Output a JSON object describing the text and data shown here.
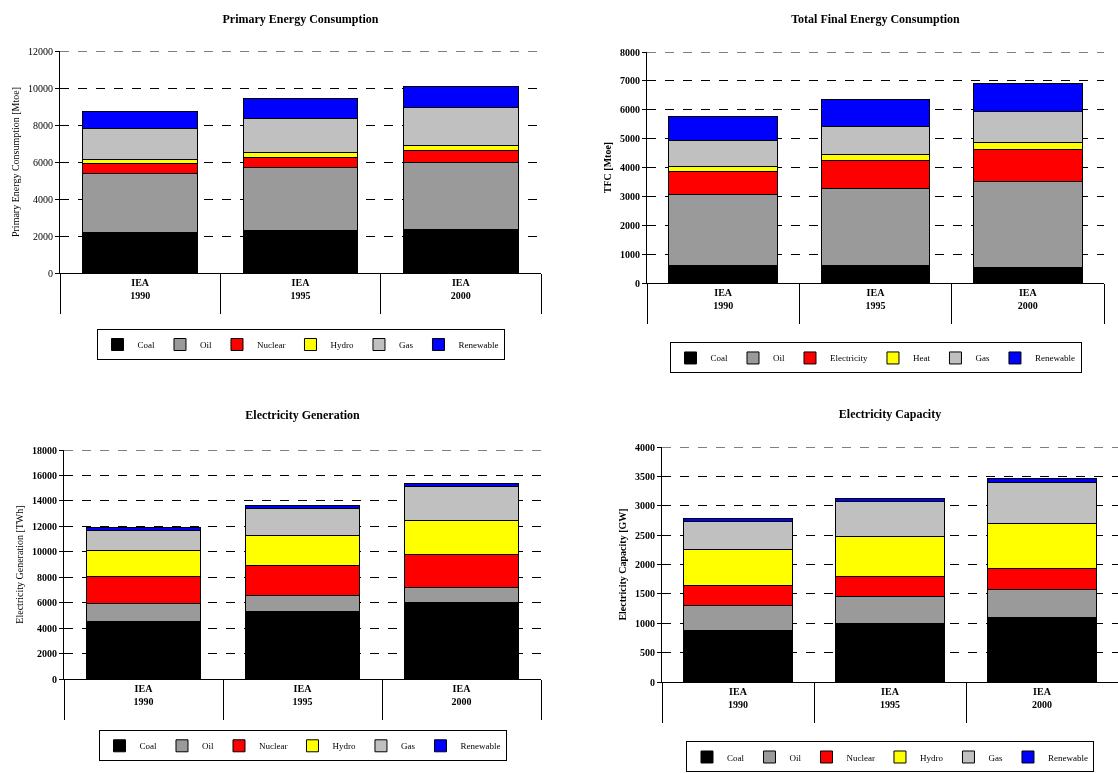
{
  "chart_data": [
    {
      "type": "bar",
      "title": "Primary Energy Consumption",
      "ylabel": "Primary Energy Consumption [Mtoe]",
      "categories": [
        "IEA\n1990",
        "IEA\n1995",
        "IEA\n2000"
      ],
      "stacked": true,
      "ylim": [
        0,
        12000
      ],
      "yticks": [
        0,
        2000,
        4000,
        6000,
        8000,
        10000,
        12000
      ],
      "grid": "y",
      "legend": "bottom",
      "series": [
        {
          "name": "Coal",
          "color": "#000000",
          "values": [
            2200,
            2280,
            2350
          ]
        },
        {
          "name": "Oil",
          "color": "#9a9a9a",
          "values": [
            3200,
            3410,
            3610
          ]
        },
        {
          "name": "Nuclear",
          "color": "#ff0000",
          "values": [
            500,
            580,
            660
          ]
        },
        {
          "name": "Hydro",
          "color": "#ffff00",
          "values": [
            240,
            230,
            250
          ]
        },
        {
          "name": "Gas",
          "color": "#c0c0c0",
          "values": [
            1650,
            1850,
            2080
          ]
        },
        {
          "name": "Renewable",
          "color": "#0000ff",
          "values": [
            950,
            1060,
            1140
          ]
        }
      ]
    },
    {
      "type": "bar",
      "title": "Total Final Energy Consumption",
      "ylabel": "TFC [Mtoe]",
      "categories": [
        "IEA\n1990",
        "IEA\n1995",
        "IEA\n2000"
      ],
      "stacked": true,
      "ylim": [
        0,
        8000
      ],
      "yticks": [
        0,
        1000,
        2000,
        3000,
        4000,
        5000,
        6000,
        7000,
        8000
      ],
      "grid": "y",
      "legend": "bottom",
      "series": [
        {
          "name": "Coal",
          "color": "#000000",
          "values": [
            620,
            590,
            550
          ]
        },
        {
          "name": "Oil",
          "color": "#9a9a9a",
          "values": [
            2460,
            2700,
            2970
          ]
        },
        {
          "name": "Electricity",
          "color": "#ff0000",
          "values": [
            770,
            950,
            1090
          ]
        },
        {
          "name": "Heat",
          "color": "#ffff00",
          "values": [
            180,
            220,
            250
          ]
        },
        {
          "name": "Gas",
          "color": "#c0c0c0",
          "values": [
            920,
            970,
            1070
          ]
        },
        {
          "name": "Renewable",
          "color": "#0000ff",
          "values": [
            830,
            910,
            990
          ]
        }
      ]
    },
    {
      "type": "bar",
      "title": "Electricity Generation",
      "ylabel": "Electricity Generation [TWh]",
      "categories": [
        "IEA\n1990",
        "IEA\n1995",
        "IEA\n2000"
      ],
      "stacked": true,
      "ylim": [
        0,
        18000
      ],
      "yticks": [
        0,
        2000,
        4000,
        6000,
        8000,
        10000,
        12000,
        14000,
        16000,
        18000
      ],
      "grid": "y",
      "legend": "bottom",
      "series": [
        {
          "name": "Coal",
          "color": "#000000",
          "values": [
            4550,
            5320,
            6000
          ]
        },
        {
          "name": "Oil",
          "color": "#9a9a9a",
          "values": [
            1420,
            1260,
            1230
          ]
        },
        {
          "name": "Nuclear",
          "color": "#ff0000",
          "values": [
            2050,
            2340,
            2590
          ]
        },
        {
          "name": "Hydro",
          "color": "#ffff00",
          "values": [
            2080,
            2390,
            2650
          ]
        },
        {
          "name": "Gas",
          "color": "#c0c0c0",
          "values": [
            1600,
            2090,
            2650
          ]
        },
        {
          "name": "Renewable",
          "color": "#0000ff",
          "values": [
            180,
            230,
            280
          ]
        }
      ]
    },
    {
      "type": "bar",
      "title": "Electricity Capacity",
      "ylabel": "Electricity Capacity [GW]",
      "categories": [
        "IEA\n1990",
        "IEA\n1995",
        "IEA\n2000"
      ],
      "stacked": true,
      "ylim": [
        0,
        4000
      ],
      "yticks": [
        0,
        500,
        1000,
        1500,
        2000,
        2500,
        3000,
        3500,
        4000
      ],
      "grid": "y",
      "legend": "bottom",
      "series": [
        {
          "name": "Coal",
          "color": "#000000",
          "values": [
            880,
            990,
            1090
          ]
        },
        {
          "name": "Oil",
          "color": "#9a9a9a",
          "values": [
            430,
            460,
            490
          ]
        },
        {
          "name": "Nuclear",
          "color": "#ff0000",
          "values": [
            330,
            340,
            350
          ]
        },
        {
          "name": "Hydro",
          "color": "#ffff00",
          "values": [
            620,
            690,
            760
          ]
        },
        {
          "name": "Gas",
          "color": "#c0c0c0",
          "values": [
            480,
            600,
            700
          ]
        },
        {
          "name": "Renewable",
          "color": "#0000ff",
          "values": [
            40,
            50,
            70
          ]
        }
      ]
    }
  ]
}
